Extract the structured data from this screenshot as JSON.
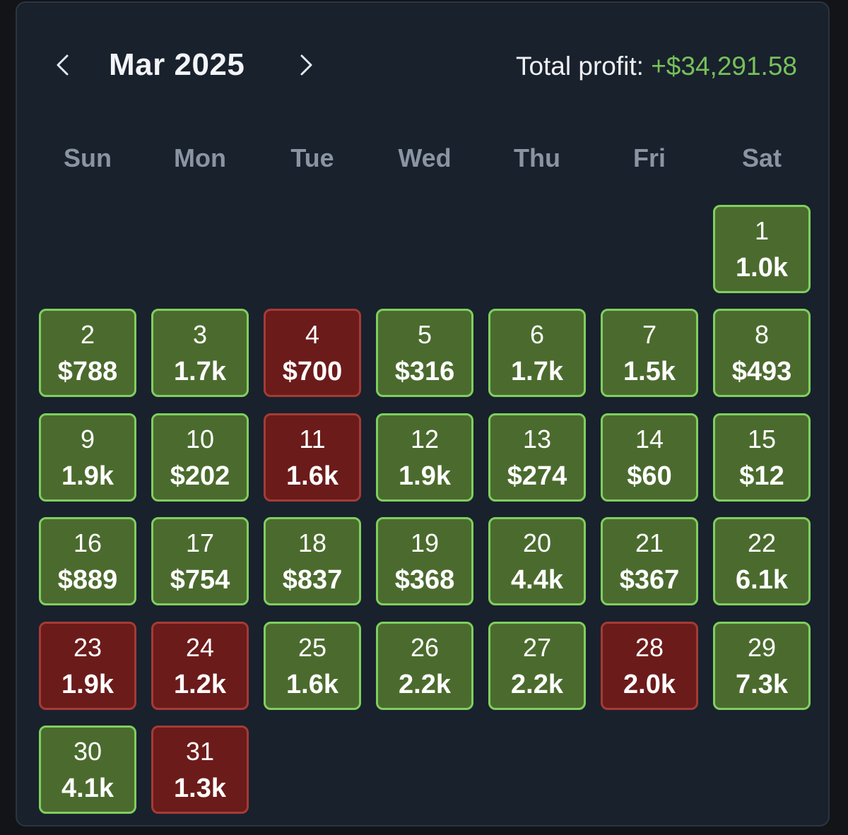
{
  "header": {
    "month_label": "Mar 2025",
    "prev_icon": "chevron-left-icon",
    "next_icon": "chevron-right-icon",
    "total_label": "Total profit:",
    "total_value": "+$34,291.58"
  },
  "weekdays": [
    "Sun",
    "Mon",
    "Tue",
    "Wed",
    "Thu",
    "Fri",
    "Sat"
  ],
  "days": [
    {
      "day": "1",
      "value": "1.0k",
      "status": "profit"
    },
    {
      "day": "2",
      "value": "$788",
      "status": "profit"
    },
    {
      "day": "3",
      "value": "1.7k",
      "status": "profit"
    },
    {
      "day": "4",
      "value": "$700",
      "status": "loss"
    },
    {
      "day": "5",
      "value": "$316",
      "status": "profit"
    },
    {
      "day": "6",
      "value": "1.7k",
      "status": "profit"
    },
    {
      "day": "7",
      "value": "1.5k",
      "status": "profit"
    },
    {
      "day": "8",
      "value": "$493",
      "status": "profit"
    },
    {
      "day": "9",
      "value": "1.9k",
      "status": "profit"
    },
    {
      "day": "10",
      "value": "$202",
      "status": "profit"
    },
    {
      "day": "11",
      "value": "1.6k",
      "status": "loss"
    },
    {
      "day": "12",
      "value": "1.9k",
      "status": "profit"
    },
    {
      "day": "13",
      "value": "$274",
      "status": "profit"
    },
    {
      "day": "14",
      "value": "$60",
      "status": "profit"
    },
    {
      "day": "15",
      "value": "$12",
      "status": "profit"
    },
    {
      "day": "16",
      "value": "$889",
      "status": "profit"
    },
    {
      "day": "17",
      "value": "$754",
      "status": "profit"
    },
    {
      "day": "18",
      "value": "$837",
      "status": "profit"
    },
    {
      "day": "19",
      "value": "$368",
      "status": "profit"
    },
    {
      "day": "20",
      "value": "4.4k",
      "status": "profit"
    },
    {
      "day": "21",
      "value": "$367",
      "status": "profit"
    },
    {
      "day": "22",
      "value": "6.1k",
      "status": "profit"
    },
    {
      "day": "23",
      "value": "1.9k",
      "status": "loss"
    },
    {
      "day": "24",
      "value": "1.2k",
      "status": "loss"
    },
    {
      "day": "25",
      "value": "1.6k",
      "status": "profit"
    },
    {
      "day": "26",
      "value": "2.2k",
      "status": "profit"
    },
    {
      "day": "27",
      "value": "2.2k",
      "status": "profit"
    },
    {
      "day": "28",
      "value": "2.0k",
      "status": "loss"
    },
    {
      "day": "29",
      "value": "7.3k",
      "status": "profit"
    },
    {
      "day": "30",
      "value": "4.1k",
      "status": "profit"
    },
    {
      "day": "31",
      "value": "1.3k",
      "status": "loss"
    }
  ],
  "colors": {
    "profit_fill": "#4b6b2e",
    "profit_border": "#7fcf5e",
    "loss_fill": "#6b1b1a",
    "loss_border": "#a53b34",
    "total_value": "#77c05a",
    "panel_background": "#19212d"
  }
}
